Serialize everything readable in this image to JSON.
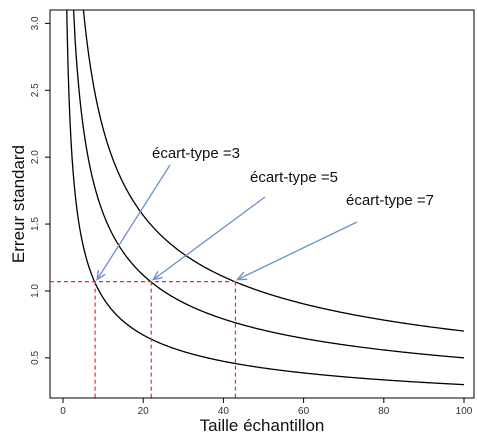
{
  "chart_data": {
    "type": "line",
    "xlabel": "Taille échantillon",
    "ylabel": "Erreur standard",
    "xlim": [
      0,
      100
    ],
    "ylim": [
      0.2,
      3.1
    ],
    "x_ticks": [
      0,
      20,
      40,
      60,
      80,
      100
    ],
    "y_ticks": [
      0.5,
      1.0,
      1.5,
      2.0,
      2.5,
      3.0
    ],
    "x_tick_labels": [
      "0",
      "20",
      "40",
      "60",
      "80",
      "100"
    ],
    "y_tick_labels": [
      "0.5",
      "1.0",
      "1.5",
      "2.0",
      "2.5",
      "3.0"
    ],
    "series": [
      {
        "sd": 3,
        "x": [
          1,
          2,
          3,
          5,
          8,
          10,
          15,
          20,
          30,
          40,
          50,
          60,
          70,
          80,
          90,
          100
        ],
        "y": [
          3.0,
          2.12,
          1.73,
          1.34,
          1.06,
          0.95,
          0.77,
          0.67,
          0.55,
          0.47,
          0.42,
          0.39,
          0.36,
          0.34,
          0.32,
          0.3
        ]
      },
      {
        "sd": 5,
        "x": [
          3,
          5,
          8,
          10,
          15,
          20,
          22,
          30,
          40,
          50,
          60,
          70,
          80,
          90,
          100
        ],
        "y": [
          2.89,
          2.24,
          1.77,
          1.58,
          1.29,
          1.12,
          1.07,
          0.91,
          0.79,
          0.71,
          0.65,
          0.6,
          0.56,
          0.53,
          0.5
        ]
      },
      {
        "sd": 7,
        "x": [
          5,
          8,
          10,
          15,
          20,
          30,
          43,
          50,
          60,
          70,
          80,
          90,
          100
        ],
        "y": [
          3.13,
          2.47,
          2.21,
          1.81,
          1.57,
          1.28,
          1.07,
          0.99,
          0.9,
          0.84,
          0.78,
          0.74,
          0.7
        ]
      }
    ],
    "reference_line_y": 1.07,
    "reference_points": [
      {
        "x": 8,
        "y": 1.07
      },
      {
        "x": 22,
        "y": 1.07
      },
      {
        "x": 43,
        "y": 1.07
      }
    ],
    "annotations": [
      {
        "text": "écart-type =3",
        "target_x": 8
      },
      {
        "text": "écart-type =5",
        "target_x": 22
      },
      {
        "text": "écart-type =7",
        "target_x": 43
      }
    ],
    "grid": false,
    "colors": {
      "line": "#000000",
      "reference": "#e03030",
      "arrow": "#6e8fc9"
    }
  }
}
